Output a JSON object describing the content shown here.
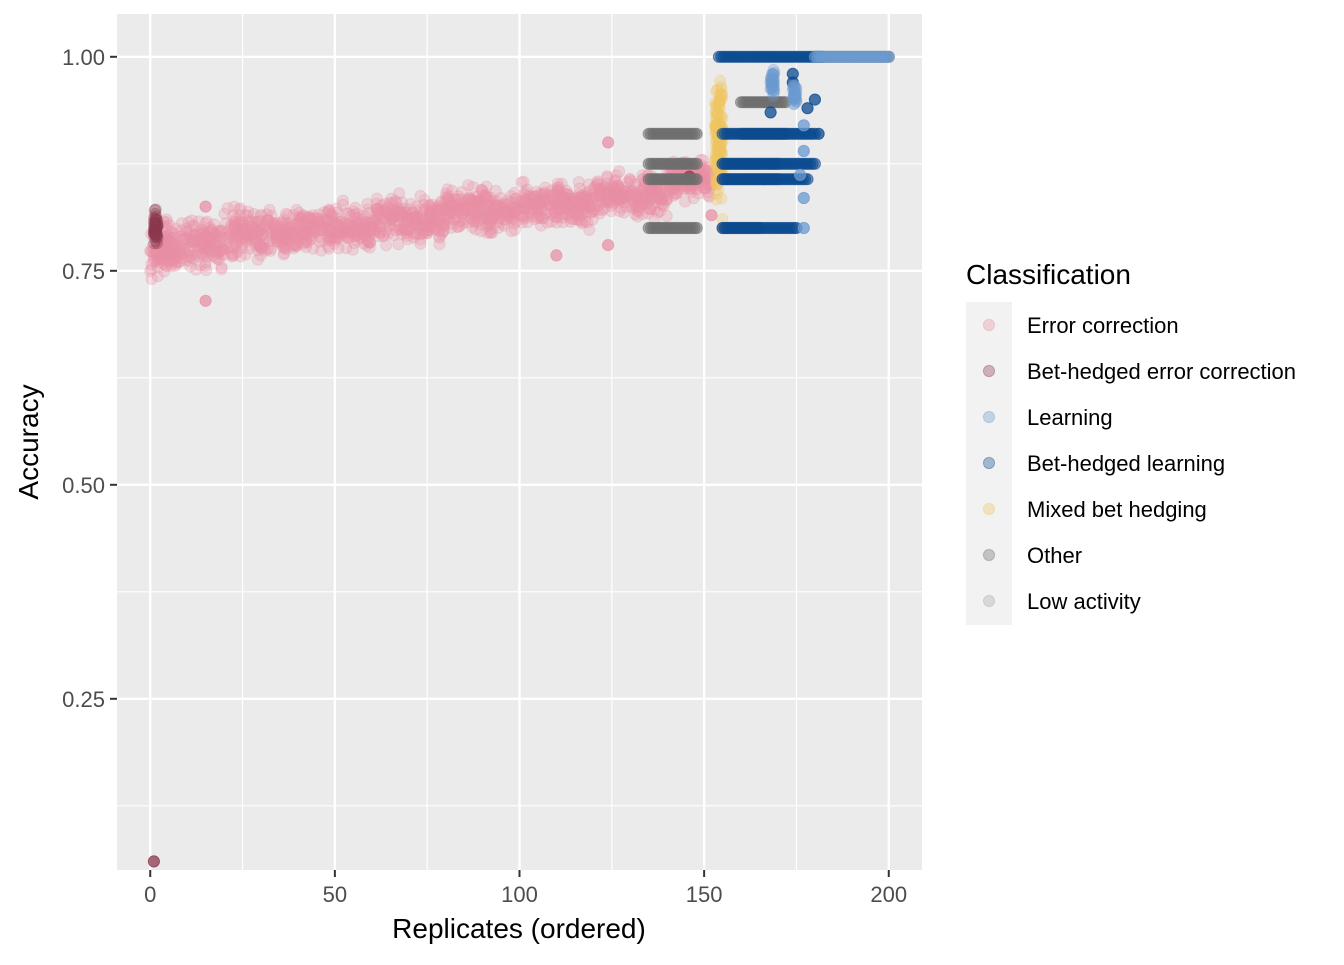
{
  "chart_data": {
    "type": "scatter",
    "title": "",
    "xlabel": "Replicates (ordered)",
    "ylabel": "Accuracy",
    "xlim": [
      -9,
      209
    ],
    "ylim": [
      0.05,
      1.05
    ],
    "x_ticks": [
      0,
      50,
      100,
      150,
      200
    ],
    "y_ticks": [
      0.25,
      0.5,
      0.75,
      1.0
    ],
    "x_tick_labels": [
      "0",
      "50",
      "100",
      "150",
      "200"
    ],
    "y_tick_labels": [
      "0.25",
      "0.50",
      "0.75",
      "1.00"
    ],
    "grid": true,
    "legend": {
      "title": "Classification",
      "position": "right",
      "entries": [
        {
          "name": "Error correction",
          "color": "#E891A6"
        },
        {
          "name": "Bet-hedged error correction",
          "color": "#8B3A4E"
        },
        {
          "name": "Learning",
          "color": "#6B9AD2"
        },
        {
          "name": "Bet-hedged learning",
          "color": "#0B4A8F"
        },
        {
          "name": "Mixed bet hedging",
          "color": "#EFC760"
        },
        {
          "name": "Other",
          "color": "#6E6E6E"
        },
        {
          "name": "Low activity",
          "color": "#A8A8A8"
        }
      ]
    },
    "series": [
      {
        "name": "Error correction",
        "color": "#E891A6",
        "ranges": [
          {
            "x": [
              0,
              5
            ],
            "y": [
              0.735,
              0.815
            ]
          },
          {
            "x": [
              5,
              20
            ],
            "y": [
              0.745,
              0.815
            ]
          },
          {
            "x": [
              20,
              40
            ],
            "y": [
              0.755,
              0.83
            ]
          },
          {
            "x": [
              40,
              60
            ],
            "y": [
              0.765,
              0.835
            ]
          },
          {
            "x": [
              60,
              80
            ],
            "y": [
              0.775,
              0.845
            ]
          },
          {
            "x": [
              80,
              100
            ],
            "y": [
              0.785,
              0.855
            ]
          },
          {
            "x": [
              100,
              120
            ],
            "y": [
              0.795,
              0.86
            ]
          },
          {
            "x": [
              120,
              140
            ],
            "y": [
              0.805,
              0.875
            ]
          },
          {
            "x": [
              140,
              152
            ],
            "y": [
              0.825,
              0.89
            ]
          }
        ],
        "points": [
          {
            "x": 15,
            "y": 0.715
          },
          {
            "x": 15,
            "y": 0.825
          },
          {
            "x": 124,
            "y": 0.9
          },
          {
            "x": 124,
            "y": 0.78
          },
          {
            "x": 110,
            "y": 0.768
          },
          {
            "x": 152,
            "y": 0.815
          }
        ]
      },
      {
        "name": "Bet-hedged error correction",
        "color": "#8B3A4E",
        "ranges": [
          {
            "x": [
              1,
              2
            ],
            "y": [
              0.77,
              0.83
            ]
          }
        ],
        "points": [
          {
            "x": 1,
            "y": 0.06
          },
          {
            "x": 146,
            "y": 0.86
          }
        ]
      },
      {
        "name": "Mixed bet hedging",
        "color": "#EFC760",
        "ranges": [
          {
            "x": [
              153,
              155
            ],
            "y": [
              0.8,
              1.0
            ]
          }
        ],
        "points": []
      },
      {
        "name": "Other",
        "color": "#6E6E6E",
        "hlines": [
          {
            "x": [
              135,
              148
            ],
            "y": 0.91
          },
          {
            "x": [
              135,
              148
            ],
            "y": 0.875
          },
          {
            "x": [
              135,
              148
            ],
            "y": 0.857
          },
          {
            "x": [
              135,
              148
            ],
            "y": 0.8
          },
          {
            "x": [
              160,
              172
            ],
            "y": 0.947
          },
          {
            "x": [
              160,
              172
            ],
            "y": 0.91
          },
          {
            "x": [
              155,
              170
            ],
            "y": 0.875
          },
          {
            "x": [
              155,
              170
            ],
            "y": 0.857
          },
          {
            "x": [
              155,
              165
            ],
            "y": 0.8
          },
          {
            "x": [
              180,
              200
            ],
            "y": 1.0
          }
        ],
        "points": []
      },
      {
        "name": "Bet-hedged learning",
        "color": "#0B4A8F",
        "hlines": [
          {
            "x": [
              154,
              182
            ],
            "y": 1.0
          },
          {
            "x": [
              155,
              180
            ],
            "y": 0.91
          },
          {
            "x": [
              155,
              180
            ],
            "y": 0.875
          },
          {
            "x": [
              155,
              178
            ],
            "y": 0.857
          },
          {
            "x": [
              155,
              175
            ],
            "y": 0.8
          }
        ],
        "points": [
          {
            "x": 174,
            "y": 0.98
          },
          {
            "x": 174,
            "y": 0.97
          },
          {
            "x": 168,
            "y": 0.935
          },
          {
            "x": 178,
            "y": 0.94
          },
          {
            "x": 180,
            "y": 0.95
          },
          {
            "x": 181,
            "y": 0.91
          }
        ]
      },
      {
        "name": "Learning",
        "color": "#6B9AD2",
        "hlines": [
          {
            "x": [
              180,
              200
            ],
            "y": 1.0
          }
        ],
        "ranges": [
          {
            "x": [
              168,
              169
            ],
            "y": 0.95,
            "y2": 0.99
          },
          {
            "x": [
              174,
              175
            ],
            "y": 0.94,
            "y2": 0.975
          }
        ],
        "points": [
          {
            "x": 177,
            "y": 0.92
          },
          {
            "x": 177,
            "y": 0.89
          },
          {
            "x": 177,
            "y": 0.835
          },
          {
            "x": 177,
            "y": 0.8
          },
          {
            "x": 176,
            "y": 0.862
          }
        ]
      }
    ]
  }
}
